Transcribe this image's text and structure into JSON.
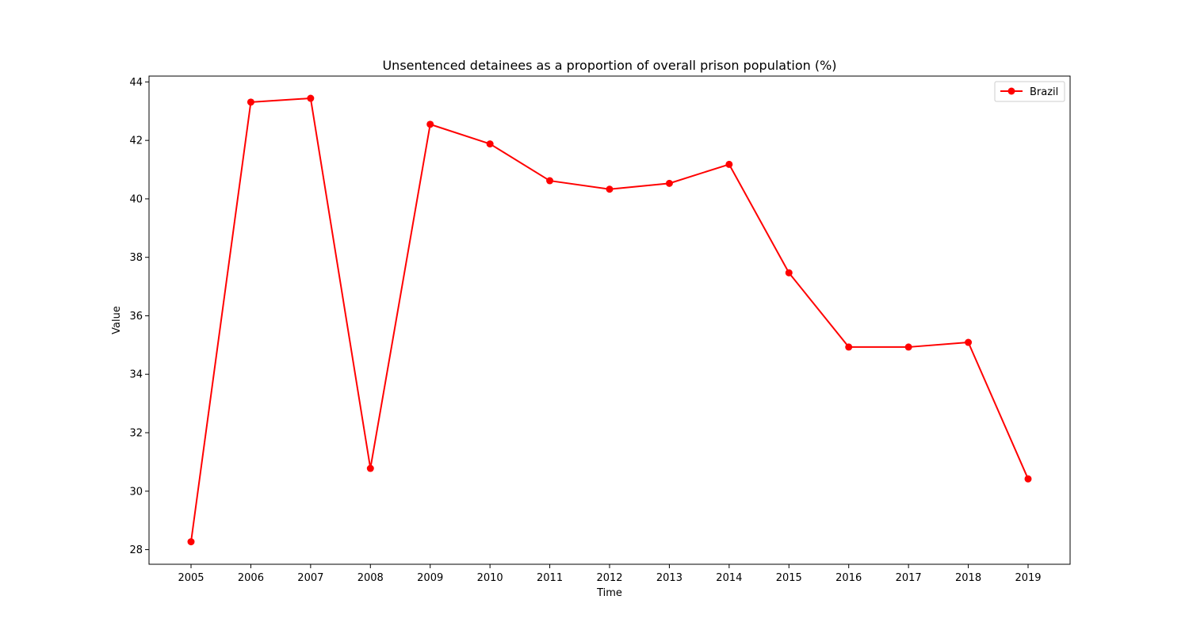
{
  "chart_data": {
    "type": "line",
    "title": "Unsentenced detainees as a proportion of overall prison population (%)",
    "xlabel": "Time",
    "ylabel": "Value",
    "x": [
      "2005",
      "2006",
      "2007",
      "2008",
      "2009",
      "2010",
      "2011",
      "2012",
      "2013",
      "2014",
      "2015",
      "2016",
      "2017",
      "2018",
      "2019"
    ],
    "series": [
      {
        "name": "Brazil",
        "color": "#ff0000",
        "marker": "circle",
        "values": [
          28.27,
          43.31,
          43.44,
          30.78,
          42.55,
          41.88,
          40.62,
          40.33,
          40.53,
          41.18,
          37.47,
          34.93,
          34.93,
          35.09,
          30.42
        ]
      }
    ],
    "ylim": [
      27.5,
      44.2
    ],
    "yticks": [
      28,
      30,
      32,
      34,
      36,
      38,
      40,
      42,
      44
    ],
    "ytick_labels": [
      "28",
      "30",
      "32",
      "34",
      "36",
      "38",
      "40",
      "42",
      "44"
    ],
    "grid": false,
    "legend_position": "upper right"
  }
}
